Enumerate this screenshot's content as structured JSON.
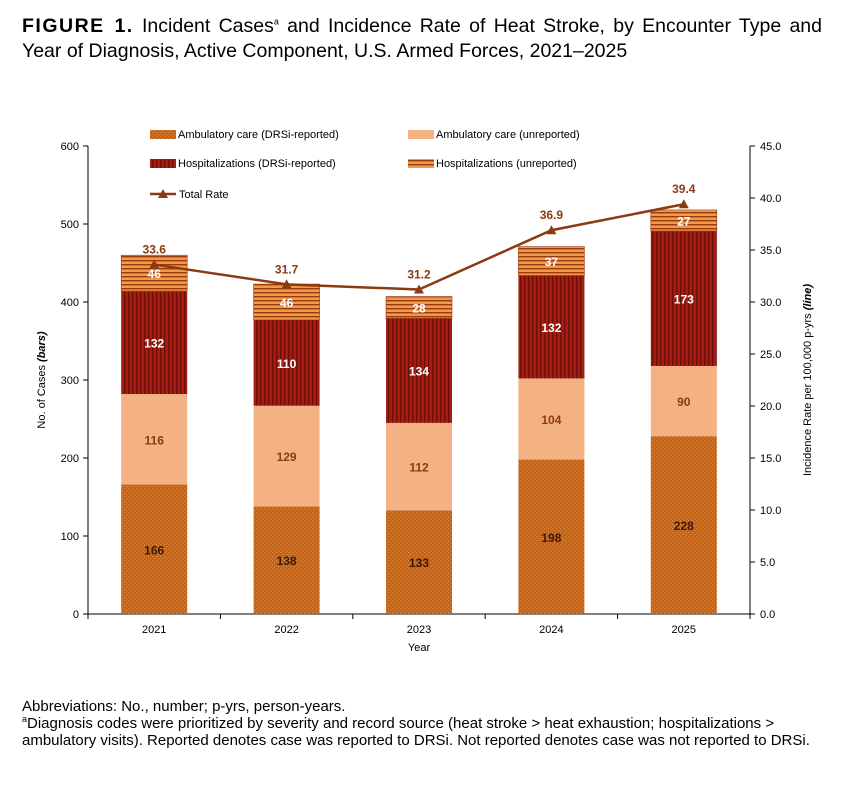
{
  "figure": {
    "label": "FIGURE 1.",
    "title_pre": "Incident Cases",
    "title_sup": "a",
    "title_post": " and Incidence Rate of Heat Stroke, by Encounter Type and Year of Diagnosis, Active Component, U.S. Armed Forces, 2021–2025"
  },
  "notes": {
    "abbreviations": "Abbreviations: No., number; p-yrs, person-years.",
    "footnote_marker": "a",
    "footnote": "Diagnosis codes were prioritized by severity and record source (heat stroke > heat exhaustion; hospitalizations > ambulatory visits). Reported denotes case was reported to DRSi. Not reported denotes case was not reported to DRSi."
  },
  "colors": {
    "amb_reported": "#c5611a",
    "amb_reported_dot": "#e08a3c",
    "amb_unreported": "#f4b183",
    "hosp_reported": "#a51d12",
    "hosp_reported_stripe": "#6e0c06",
    "hosp_unreported": "#ee9b4a",
    "hosp_unreported_stripe": "#9c3a0e",
    "rate_line": "#8b3a12",
    "label_dark": "#3b1a08",
    "label_light": "#ffffff",
    "rate_label": "#8b3a12"
  },
  "chart_data": {
    "type": "bar",
    "stacked": true,
    "categories": [
      "2021",
      "2022",
      "2023",
      "2024",
      "2025"
    ],
    "xlabel": "Year",
    "ylabel_left": "No. of Cases",
    "ylabel_left_italic": "(bars)",
    "ylabel_right": "Incidence Rate per 100,000 p-yrs",
    "ylabel_right_italic": "(line)",
    "ylim_left": [
      0,
      600
    ],
    "yticks_left": [
      "0",
      "100",
      "200",
      "300",
      "400",
      "500",
      "600"
    ],
    "ylim_right": [
      0,
      45
    ],
    "yticks_right": [
      "0.0",
      "5.0",
      "10.0",
      "15.0",
      "20.0",
      "25.0",
      "30.0",
      "35.0",
      "40.0",
      "45.0"
    ],
    "legend_position": "top",
    "series": [
      {
        "name": "Ambulatory care (DRSi-reported)",
        "key": "amb_reported",
        "values": [
          166,
          138,
          133,
          198,
          228
        ]
      },
      {
        "name": "Ambulatory care (unreported)",
        "key": "amb_unreported",
        "values": [
          116,
          129,
          112,
          104,
          90
        ]
      },
      {
        "name": "Hospitalizations  (DRSi-reported)",
        "key": "hosp_reported",
        "values": [
          132,
          110,
          134,
          132,
          173
        ]
      },
      {
        "name": "Hospitalizations  (unreported)",
        "key": "hosp_unreported",
        "values": [
          46,
          46,
          28,
          37,
          27
        ]
      }
    ],
    "line": {
      "name": "Total Rate",
      "values": [
        33.6,
        31.7,
        31.2,
        36.9,
        39.4
      ],
      "labels": [
        "33.6",
        "31.7",
        "31.2",
        "36.9",
        "39.4"
      ]
    }
  }
}
